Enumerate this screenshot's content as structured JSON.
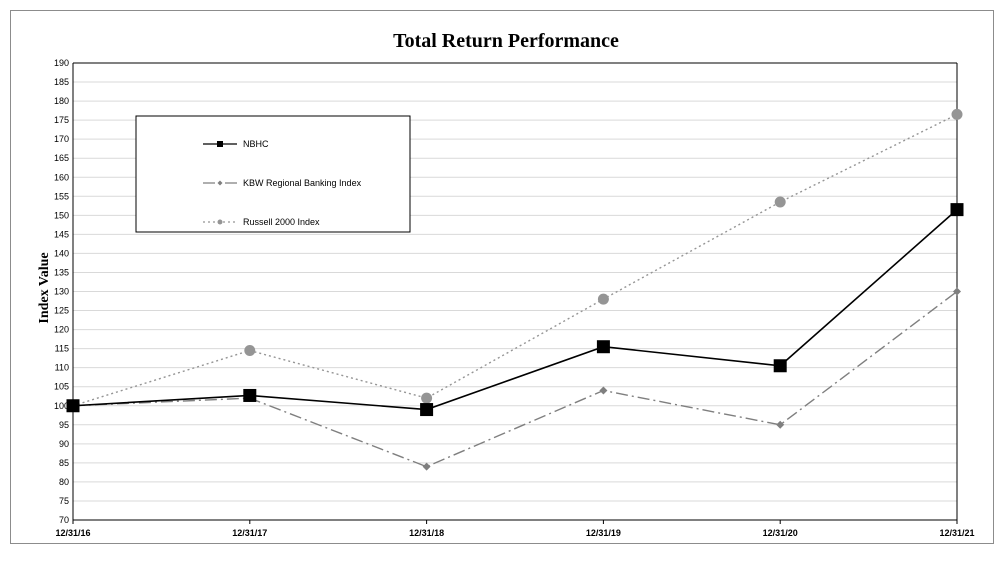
{
  "chart_data": {
    "type": "line",
    "title": "Total Return Performance",
    "ylabel": "Index Value",
    "xlabel": "",
    "categories": [
      "12/31/16",
      "12/31/17",
      "12/31/18",
      "12/31/19",
      "12/31/20",
      "12/31/21"
    ],
    "ylim": [
      70,
      190
    ],
    "ytick_step": 5,
    "grid": "horizontal",
    "legend_position": "upper-left",
    "series": [
      {
        "name": "NBHC",
        "values": [
          100,
          102.7,
          99,
          115.5,
          110.5,
          151.5
        ],
        "color": "#000000",
        "marker": "square",
        "line": "solid"
      },
      {
        "name": "KBW Regional Banking Index",
        "values": [
          100,
          102,
          84,
          104,
          95,
          130
        ],
        "color": "#7f7f7f",
        "marker": "diamond",
        "line": "dashdot"
      },
      {
        "name": "Russell 2000 Index",
        "values": [
          100,
          114.5,
          102,
          128,
          153.5,
          176.5
        ],
        "color": "#959595",
        "marker": "circle",
        "line": "dotted"
      }
    ]
  }
}
